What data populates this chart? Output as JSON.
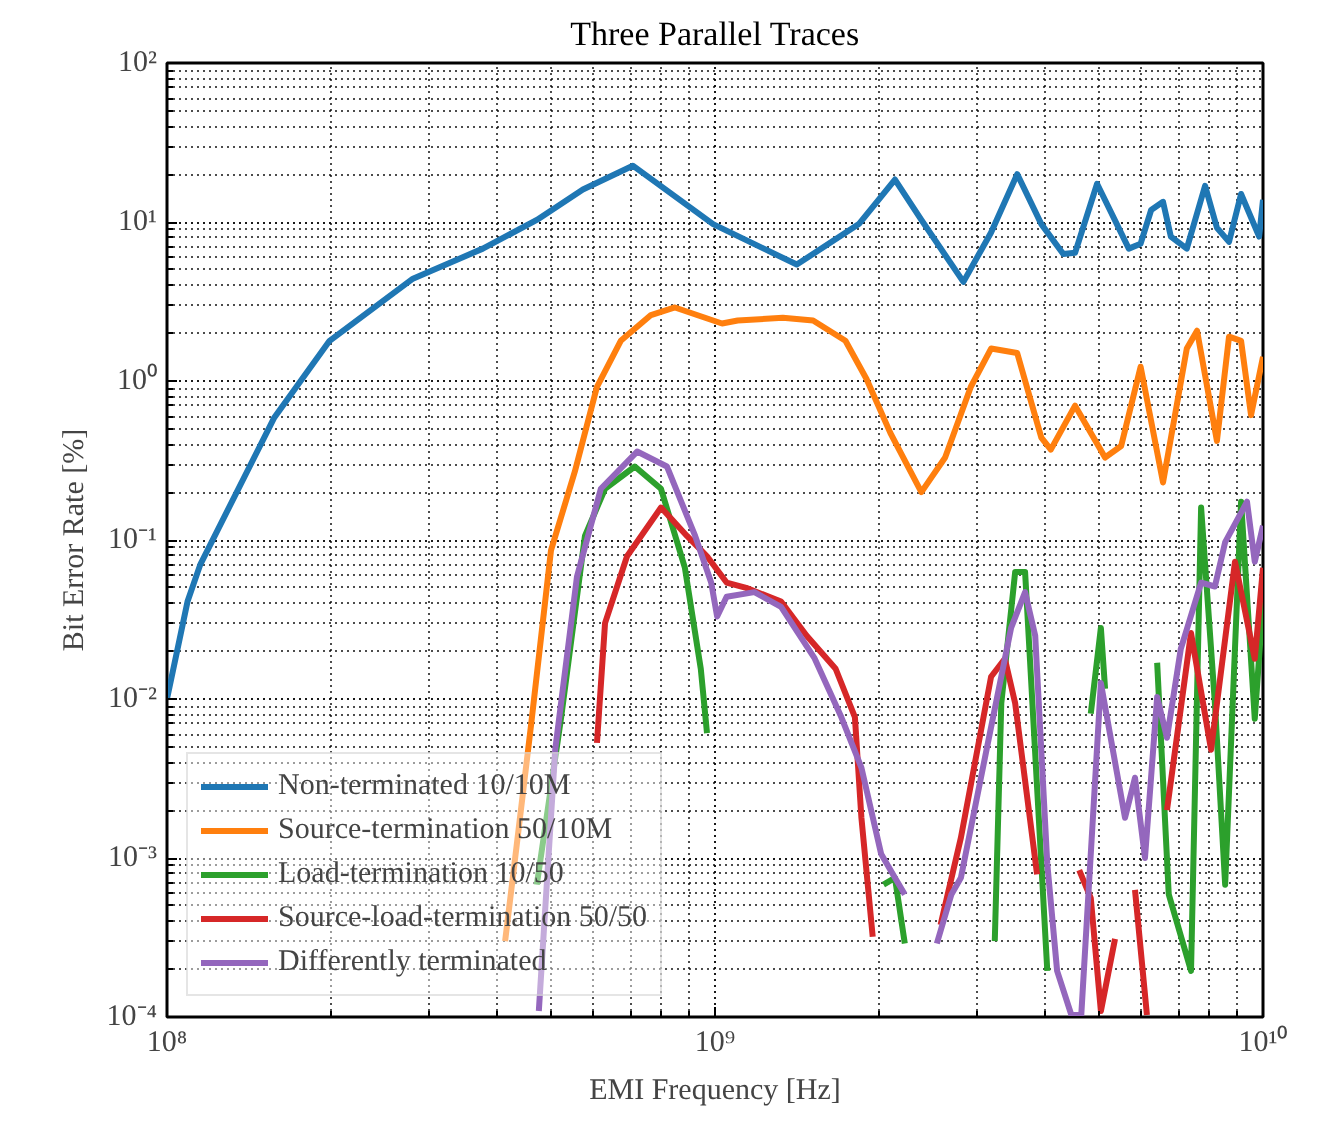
{
  "chart_data": {
    "type": "line",
    "title": "Three Parallel Traces",
    "xlabel": "EMI Frequency [Hz]",
    "ylabel": "Bit Error Rate [%]",
    "log": "xy",
    "grid": true,
    "legend": "bottom left",
    "line_style": "solid",
    "marker": "none",
    "xlim": [
      100000000.0,
      10000000000.0
    ],
    "ylim": [
      0.0001,
      100
    ],
    "xticks": [
      {
        "value": 100000000.0,
        "label": "10⁸"
      },
      {
        "value": 1000000000.0,
        "label": "10⁹"
      },
      {
        "value": 10000000000.0,
        "label": "10¹⁰"
      }
    ],
    "yticks": [
      {
        "value": 0.0001,
        "label": "10⁻⁴"
      },
      {
        "value": 0.001,
        "label": "10⁻³"
      },
      {
        "value": 0.01,
        "label": "10⁻²"
      },
      {
        "value": 0.1,
        "label": "10⁻¹"
      },
      {
        "value": 1,
        "label": "10⁰"
      },
      {
        "value": 10,
        "label": "10¹"
      },
      {
        "value": 100,
        "label": "10²"
      }
    ],
    "series": [
      {
        "name": "Non-terminated 10/10M",
        "color": "#1f77b4",
        "x": [
          100000000.0,
          109000000.0,
          115000000.0,
          157000000.0,
          198000000.0,
          281000000.0,
          377000000.0,
          473000000.0,
          574000000.0,
          708000000.0,
          992000000.0,
          1410000000.0,
          1830000000.0,
          2130000000.0,
          2380000000.0,
          2840000000.0,
          3190000000.0,
          3560000000.0,
          3940000000.0,
          4320000000.0,
          4540000000.0,
          4980000000.0,
          5690000000.0,
          5980000000.0,
          6250000000.0,
          6570000000.0,
          6790000000.0,
          7260000000.0,
          7840000000.0,
          8240000000.0,
          8670000000.0,
          9120000000.0,
          9840000000.0,
          10000000000.0
        ],
        "values": [
          0.01,
          0.041,
          0.07,
          0.59,
          1.79,
          4.4,
          6.8,
          10.3,
          16,
          22.6,
          9.7,
          5.4,
          9.7,
          18.5,
          10.3,
          4.2,
          8.6,
          20,
          9.7,
          6.3,
          6.4,
          17.4,
          6.8,
          7.3,
          11.9,
          13.4,
          8.1,
          6.8,
          16.9,
          9.2,
          7.5,
          15,
          8.1,
          13.8
        ]
      },
      {
        "name": "Source-termination 50/10M",
        "color": "#ff7f0e",
        "x": [
          414000000.0,
          435000000.0,
          462000000.0,
          502000000.0,
          555000000.0,
          609000000.0,
          673000000.0,
          764000000.0,
          845000000.0,
          927000000.0,
          1030000000.0,
          1100000000.0,
          1330000000.0,
          1510000000.0,
          1730000000.0,
          1890000000.0,
          2090000000.0,
          2380000000.0,
          2630000000.0,
          2930000000.0,
          3190000000.0,
          3560000000.0,
          3940000000.0,
          4100000000.0,
          4540000000.0,
          5150000000.0,
          5510000000.0,
          5980000000.0,
          6570000000.0,
          7260000000.0,
          7580000000.0,
          8240000000.0,
          8670000000.0,
          9120000000.0,
          9510000000.0,
          10000000000.0
        ],
        "values": [
          0.0003,
          0.00123,
          0.007,
          0.086,
          0.27,
          0.92,
          1.79,
          2.6,
          2.9,
          2.6,
          2.3,
          2.4,
          2.5,
          2.4,
          1.79,
          1.03,
          0.47,
          0.2,
          0.33,
          0.92,
          1.6,
          1.5,
          0.44,
          0.37,
          0.7,
          0.33,
          0.39,
          1.23,
          0.23,
          1.6,
          2.07,
          0.42,
          1.9,
          1.79,
          0.61,
          1.42
        ]
      },
      {
        "name": "Load-termination 10/50",
        "color": "#2ca02c",
        "x": [
          473000000.0,
          524000000.0,
          579000000.0,
          630000000.0,
          714000000.0,
          797000000.0,
          881000000.0,
          942000000.0,
          967000000.0,
          1400000000.0,
          2030000000.0,
          2130000000.0,
          2220000000.0,
          2700000000.0,
          3240000000.0,
          3330000000.0,
          3530000000.0,
          3680000000.0,
          4040000000.0,
          4400000000.0,
          4850000000.0,
          5060000000.0,
          5150000000.0,
          5800000000.0,
          6410000000.0,
          6730000000.0,
          7390000000.0,
          7710000000.0,
          8170000000.0,
          8530000000.0,
          9120000000.0,
          9660000000.0,
          10000000000.0
        ],
        "values": [
          0.00068,
          0.0077,
          0.106,
          0.21,
          0.29,
          0.21,
          0.067,
          0.0155,
          0.0061,
          null,
          0.00068,
          0.00075,
          0.00029,
          null,
          0.0003,
          0.0094,
          0.063,
          0.063,
          0.000195,
          null,
          0.0081,
          0.028,
          0.0116,
          null,
          0.0169,
          0.00059,
          0.000195,
          0.16,
          0.0094,
          0.00068,
          0.174,
          0.0075,
          0.041
        ]
      },
      {
        "name": "Source-load-termination 50/50",
        "color": "#d62728",
        "x": [
          609000000.0,
          630000000.0,
          691000000.0,
          797000000.0,
          889000000.0,
          967000000.0,
          1050000000.0,
          1140000000.0,
          1320000000.0,
          1470000000.0,
          1660000000.0,
          1800000000.0,
          1850000000.0,
          1940000000.0,
          2200000000.0,
          2580000000.0,
          2810000000.0,
          3190000000.0,
          3380000000.0,
          3530000000.0,
          3870000000.0,
          4200000000.0,
          4620000000.0,
          4850000000.0,
          5060000000.0,
          5370000000.0,
          5600000000.0,
          5840000000.0,
          6140000000.0,
          6400000000.0,
          6680000000.0,
          7390000000.0,
          8040000000.0,
          8890000000.0,
          9660000000.0,
          10000000000.0
        ],
        "values": [
          0.0053,
          0.03,
          0.079,
          0.16,
          0.106,
          0.079,
          0.054,
          0.05,
          0.041,
          0.025,
          0.0155,
          0.0077,
          0.00179,
          0.00032,
          null,
          0.00038,
          0.00134,
          0.0138,
          0.0179,
          0.0094,
          0.00079,
          null,
          0.00084,
          0.00056,
          0.000109,
          0.00031,
          null,
          0.00063,
          0.000103,
          null,
          0.002,
          0.026,
          0.0048,
          0.073,
          0.0179,
          0.067
        ]
      },
      {
        "name": "Differently terminated",
        "color": "#9467bd",
        "x": [
          477000000.0,
          511000000.0,
          560000000.0,
          619000000.0,
          721000000.0,
          817000000.0,
          920000000.0,
          984000000.0,
          1009000000.0,
          1050000000.0,
          1180000000.0,
          1320000000.0,
          1520000000.0,
          1700000000.0,
          1850000000.0,
          2010000000.0,
          2130000000.0,
          2220000000.0,
          2400000000.0,
          2540000000.0,
          2700000000.0,
          2810000000.0,
          3130000000.0,
          3470000000.0,
          3680000000.0,
          3840000000.0,
          4040000000.0,
          4210000000.0,
          4470000000.0,
          4660000000.0,
          5060000000.0,
          5600000000.0,
          5840000000.0,
          6090000000.0,
          6410000000.0,
          6680000000.0,
          7080000000.0,
          7710000000.0,
          8170000000.0,
          8530000000.0,
          9350000000.0,
          9660000000.0,
          10000000000.0
        ],
        "values": [
          0.000109,
          0.0048,
          0.059,
          0.21,
          0.36,
          0.29,
          0.106,
          0.054,
          0.033,
          0.044,
          0.047,
          0.038,
          0.018,
          0.0077,
          0.0037,
          0.00106,
          0.00075,
          0.00059,
          null,
          0.00029,
          0.00059,
          0.00075,
          0.0048,
          0.028,
          0.047,
          0.025,
          0.00092,
          0.000195,
          0.000103,
          0.000103,
          0.0126,
          0.00179,
          0.0032,
          0.001,
          0.0103,
          0.0057,
          0.0207,
          0.054,
          0.051,
          0.097,
          0.174,
          0.073,
          0.123
        ]
      }
    ]
  }
}
